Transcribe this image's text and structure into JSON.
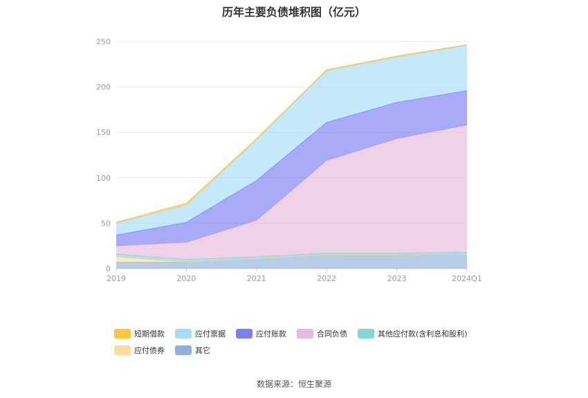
{
  "chart_data": {
    "type": "area",
    "title": "历年主要负债堆积图（亿元）",
    "stacked": true,
    "categories": [
      "2019",
      "2020",
      "2021",
      "2022",
      "2023",
      "2024Q1"
    ],
    "ylim": [
      0,
      250
    ],
    "yticks": [
      0,
      50,
      100,
      150,
      200,
      250
    ],
    "grid": true,
    "legend_position": "bottom",
    "series": [
      {
        "name": "其它",
        "color": "#8fb0dc",
        "values": [
          7,
          7,
          11,
          15,
          15,
          16
        ]
      },
      {
        "name": "应付债券",
        "color": "#ffdb9a",
        "values": [
          6,
          0,
          0,
          0,
          0,
          0
        ]
      },
      {
        "name": "其他应付款(含利息和股利)",
        "color": "#83d6d8",
        "values": [
          3,
          3,
          2,
          2,
          2,
          2
        ]
      },
      {
        "name": "合同负债",
        "color": "#e7b9db",
        "values": [
          9,
          19,
          40,
          102,
          126,
          140
        ]
      },
      {
        "name": "应付账款",
        "color": "#7b7ef5",
        "values": [
          12,
          22,
          44,
          42,
          40,
          38
        ]
      },
      {
        "name": "应付票据",
        "color": "#a6dcf8",
        "values": [
          13,
          19,
          45,
          57,
          50,
          50
        ]
      },
      {
        "name": "短期借款",
        "color": "#ffc73a",
        "values": [
          1,
          2,
          1,
          1,
          1,
          0.5
        ]
      }
    ],
    "legend_order": [
      "短期借款",
      "应付票据",
      "应付账款",
      "合同负债",
      "其他应付款(含利息和股利)",
      "应付债券",
      "其它"
    ]
  },
  "source_note": "数据来源：恒生聚源"
}
